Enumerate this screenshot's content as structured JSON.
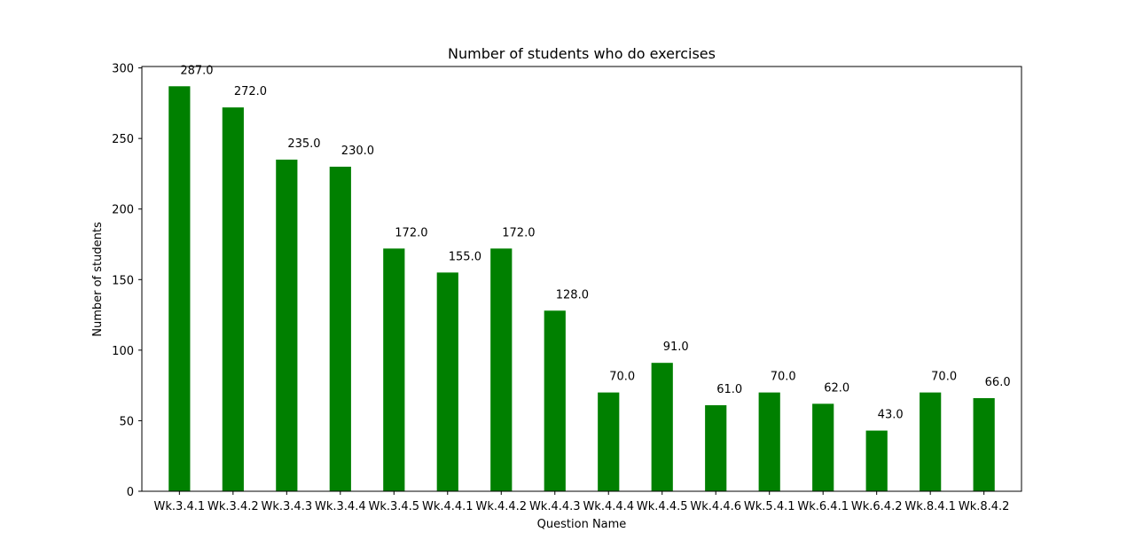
{
  "chart_data": {
    "type": "bar",
    "title": "Number of students who do exercises",
    "xlabel": "Question Name",
    "ylabel": "Number of students",
    "categories": [
      "Wk.3.4.1",
      "Wk.3.4.2",
      "Wk.3.4.3",
      "Wk.3.4.4",
      "Wk.3.4.5",
      "Wk.4.4.1",
      "Wk.4.4.2",
      "Wk.4.4.3",
      "Wk.4.4.4",
      "Wk.4.4.5",
      "Wk.4.4.6",
      "Wk.5.4.1",
      "Wk.6.4.1",
      "Wk.6.4.2",
      "Wk.8.4.1",
      "Wk.8.4.2"
    ],
    "values": [
      287,
      272,
      235,
      230,
      172,
      155,
      172,
      128,
      70,
      91,
      61,
      70,
      62,
      43,
      70,
      66
    ],
    "value_labels": [
      "287.0",
      "272.0",
      "235.0",
      "230.0",
      "172.0",
      "155.0",
      "172.0",
      "128.0",
      "70.0",
      "91.0",
      "61.0",
      "70.0",
      "62.0",
      "43.0",
      "70.0",
      "66.0"
    ],
    "yticks": [
      0,
      50,
      100,
      150,
      200,
      250,
      300
    ],
    "ylim": [
      0,
      301
    ],
    "bar_color": "#008000",
    "grid": false,
    "legend": false
  }
}
